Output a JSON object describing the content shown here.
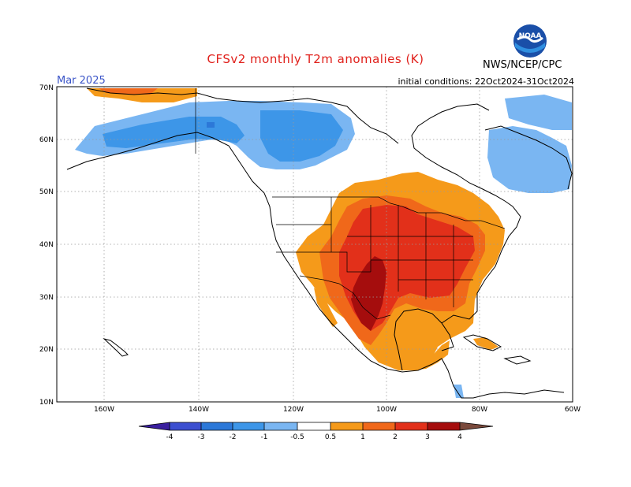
{
  "header": {
    "title": "CFSv2 monthly T2m anomalies (K)",
    "month": "Mar 2025",
    "initial_conditions": "initial conditions: 22Oct2024-31Oct2024",
    "agency": "NWS/NCEP/CPC",
    "logo_text": "NOAA"
  },
  "map": {
    "lat_labels": [
      "70N",
      "60N",
      "50N",
      "40N",
      "30N",
      "20N",
      "10N"
    ],
    "lon_labels": [
      "160W",
      "140W",
      "120W",
      "100W",
      "80W",
      "60W"
    ],
    "lat_values": [
      70,
      60,
      50,
      40,
      30,
      20,
      10
    ],
    "lon_values": [
      -160,
      -140,
      -120,
      -100,
      -80,
      -60
    ]
  },
  "colorbar": {
    "labels": [
      "-4",
      "-3",
      "-2",
      "-1",
      "-0.5",
      "0.5",
      "1",
      "2",
      "3",
      "4"
    ],
    "colors": {
      "neg4": "#3a1f9e",
      "neg3": "#3c4fd0",
      "neg2": "#2c78d8",
      "neg1": "#3d96e8",
      "neg05": "#7ab6f2",
      "zero": "#ffffff",
      "pos05": "#f59a1a",
      "pos1": "#f0681a",
      "pos2": "#e2301a",
      "pos3": "#a50d0d",
      "pos4": "#c49a8c",
      "pos5": "#7a4a3c"
    }
  }
}
